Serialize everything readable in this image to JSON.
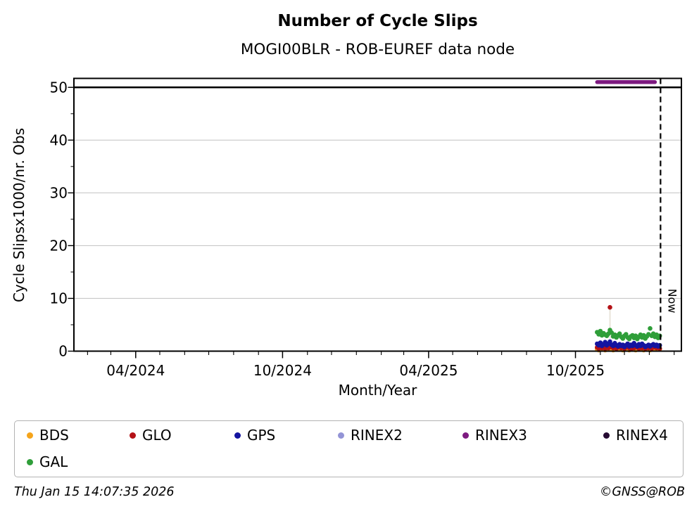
{
  "header": {
    "title": "Number of Cycle Slips",
    "subtitle": "MOGI00BLR - ROB-EUREF data node"
  },
  "footer": {
    "timestamp": "Thu Jan 15 14:07:35 2026",
    "credit": "©GNSS@ROB"
  },
  "chart_data": {
    "type": "scatter",
    "title": "Number of Cycle Slips",
    "subtitle": "MOGI00BLR - ROB-EUREF data node",
    "xlabel": "Month/Year",
    "ylabel": "Cycle Slipsx1000/nr. Obs",
    "ylim": [
      0,
      51.7
    ],
    "yticks": [
      0,
      10,
      20,
      30,
      40,
      50
    ],
    "y_minor_tick_step": 5,
    "grid": "horizontal",
    "grid_color": "#c8c8c8",
    "x_range": [
      "2024-01-15",
      "2026-02-10"
    ],
    "x_major_ticks": [
      {
        "date": "2024-04-01",
        "label": "04/2024"
      },
      {
        "date": "2024-10-01",
        "label": "10/2024"
      },
      {
        "date": "2025-04-01",
        "label": "04/2025"
      },
      {
        "date": "2025-10-01",
        "label": "10/2025"
      }
    ],
    "x_minor_tick_interval_months": 1,
    "cap_line": {
      "y": 50,
      "color": "#000000",
      "width": 2.5
    },
    "now_line": {
      "date": "2026-01-15",
      "label": "Now",
      "style": "dashed",
      "color": "#000000"
    },
    "dropline": {
      "point_index": 8,
      "series": "GLO",
      "y_top": 8.3,
      "y_bottom": 0.9,
      "color": "#e8e4d9"
    },
    "points_start_date": "2025-10-28",
    "points_step_days": 2,
    "series": [
      {
        "name": "BDS",
        "color": "#f5a41b",
        "type": "scatter",
        "values": [
          0.4,
          0.2,
          0.5,
          0.3,
          0.4,
          0.2,
          0.5,
          0.3,
          0.6,
          0.4,
          0.2,
          0.5,
          0.3,
          0.4,
          0.6,
          0.3,
          0.2,
          0.4,
          0.5,
          0.3,
          0.2,
          0.4,
          0.3,
          0.5,
          0.2,
          0.4,
          0.3,
          0.5,
          0.4,
          0.2,
          0.5,
          0.3,
          0.4,
          0.2,
          0.5,
          0.3,
          0.4,
          0.6,
          0.3,
          0.4
        ]
      },
      {
        "name": "GLO",
        "color": "#b41217",
        "type": "scatter",
        "values": [
          0.7,
          0.5,
          0.9,
          0.6,
          0.8,
          0.5,
          0.7,
          0.6,
          8.3,
          0.8,
          0.6,
          0.9,
          0.5,
          0.7,
          1.0,
          0.6,
          0.8,
          0.5,
          0.7,
          0.9,
          0.6,
          0.4,
          0.8,
          0.6,
          1.0,
          0.7,
          0.5,
          0.8,
          0.6,
          0.9,
          0.5,
          0.7,
          0.6,
          0.8,
          0.5,
          0.9,
          0.7,
          0.6,
          0.8,
          0.5
        ]
      },
      {
        "name": "GPS",
        "color": "#1414a0",
        "type": "scatter",
        "values": [
          1.4,
          1.1,
          1.6,
          1.0,
          1.3,
          1.7,
          1.1,
          1.4,
          1.8,
          1.2,
          1.0,
          1.5,
          1.1,
          0.9,
          1.3,
          1.0,
          1.2,
          0.8,
          1.1,
          1.4,
          0.9,
          1.2,
          1.0,
          1.5,
          1.1,
          0.9,
          1.3,
          1.0,
          1.4,
          1.1,
          0.8,
          1.0,
          1.2,
          0.9,
          1.1,
          1.3,
          1.0,
          1.2,
          0.9,
          1.1
        ]
      },
      {
        "name": "GAL",
        "color": "#2f9e39",
        "type": "scatter",
        "values": [
          3.6,
          3.2,
          3.8,
          3.0,
          3.4,
          3.1,
          2.9,
          3.3,
          4.0,
          3.5,
          2.8,
          3.1,
          2.6,
          3.0,
          3.3,
          2.7,
          2.4,
          2.9,
          3.2,
          2.6,
          2.3,
          2.8,
          3.0,
          2.5,
          2.9,
          2.3,
          2.7,
          3.1,
          2.6,
          3.0,
          2.4,
          2.8,
          3.2,
          4.3,
          2.9,
          3.3,
          2.7,
          3.1,
          2.5,
          2.9
        ]
      },
      {
        "name": "RINEX3",
        "color": "#7d1a80",
        "type": "line",
        "value": 51,
        "date_range": [
          "2025-10-28",
          "2026-01-08"
        ],
        "line_width": 5.5
      }
    ],
    "legend": {
      "position": "bottom",
      "items": [
        {
          "label": "BDS",
          "color": "#f5a41b"
        },
        {
          "label": "GLO",
          "color": "#b41217"
        },
        {
          "label": "GPS",
          "color": "#1414a0"
        },
        {
          "label": "RINEX2",
          "color": "#9394d6"
        },
        {
          "label": "RINEX3",
          "color": "#7d1a80"
        },
        {
          "label": "RINEX4",
          "color": "#260b33"
        },
        {
          "label": "GAL",
          "color": "#2f9e39"
        }
      ]
    }
  }
}
